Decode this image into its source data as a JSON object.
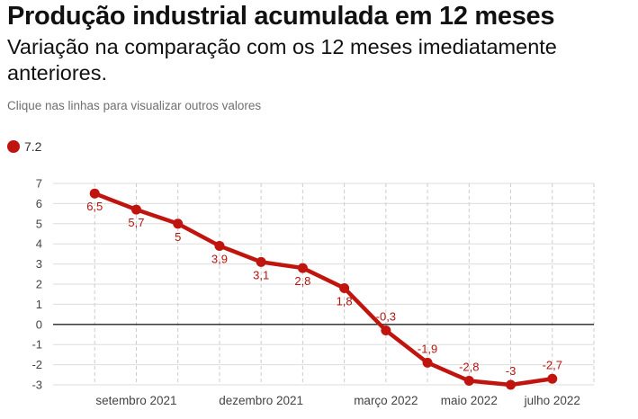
{
  "header": {
    "title": "Produção industrial acumulada em 12 meses",
    "subtitle": "Variação na comparação com os 12 meses imediatamente anteriores.",
    "instruction": "Clique nas linhas para visualizar outros valores"
  },
  "legend": {
    "value_label": "7.2",
    "color": "#c0150f"
  },
  "chart_data": {
    "type": "line",
    "x": [
      "2021-08",
      "2021-09",
      "2021-10",
      "2021-11",
      "2021-12",
      "2022-01",
      "2022-02",
      "2022-03",
      "2022-04",
      "2022-05",
      "2022-06",
      "2022-07",
      "2022-08"
    ],
    "series": [
      {
        "values": [
          6.5,
          5.7,
          5.0,
          3.9,
          3.1,
          2.8,
          1.8,
          -0.3,
          -1.9,
          -2.8,
          -3.0,
          -2.7
        ],
        "labels": [
          "6,5",
          "5,7",
          "5",
          "3,9",
          "3,1",
          "2,8",
          "1,8",
          "-0,3",
          "-1,9",
          "-2,8",
          "-3",
          "-2,7"
        ],
        "x": [
          "2021-08",
          "2021-09",
          "2021-10",
          "2021-11",
          "2021-12",
          "2022-01",
          "2022-02",
          "2022-03",
          "2022-04",
          "2022-05",
          "2022-06",
          "2022-07"
        ],
        "color": "#c0150f"
      }
    ],
    "x_ticks": [
      {
        "label": "setembro 2021",
        "x": "2021-09"
      },
      {
        "label": "dezembro 2021",
        "x": "2021-12"
      },
      {
        "label": "março 2022",
        "x": "2022-03"
      },
      {
        "label": "maio 2022",
        "x": "2022-05"
      },
      {
        "label": "julho 2022",
        "x": "2022-07"
      }
    ],
    "xlim": [
      "2021-07",
      "2022-08"
    ],
    "ylim": [
      -3,
      7
    ],
    "y_ticks": [
      7,
      6,
      5,
      4,
      3,
      2,
      1,
      0,
      -1,
      -2,
      -3
    ],
    "grid": true,
    "zero_line": true,
    "title": "",
    "xlabel": "",
    "ylabel": ""
  }
}
